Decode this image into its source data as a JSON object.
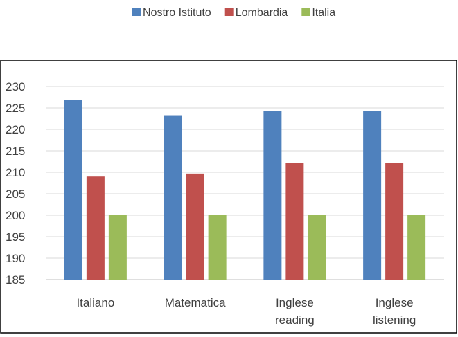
{
  "chart_data": {
    "type": "bar",
    "title": "",
    "xlabel": "",
    "ylabel": "",
    "categories": [
      [
        "Italiano"
      ],
      [
        "Matematica"
      ],
      [
        "Inglese",
        "reading"
      ],
      [
        "Inglese",
        "listening"
      ]
    ],
    "series": [
      {
        "name": "Nostro Istituto",
        "color": "#4F81BD",
        "values": [
          226.8,
          223.3,
          224.3,
          224.3
        ]
      },
      {
        "name": "Lombardia",
        "color": "#C0504D",
        "values": [
          209.0,
          209.7,
          212.2,
          212.2
        ]
      },
      {
        "name": "Italia",
        "color": "#9BBB59",
        "values": [
          200.0,
          200.0,
          200.0,
          200.0
        ]
      }
    ],
    "ylim": [
      185,
      230
    ],
    "yticks": [
      185,
      190,
      195,
      200,
      205,
      210,
      215,
      220,
      225,
      230
    ],
    "grid": true,
    "legend_position": "top"
  }
}
